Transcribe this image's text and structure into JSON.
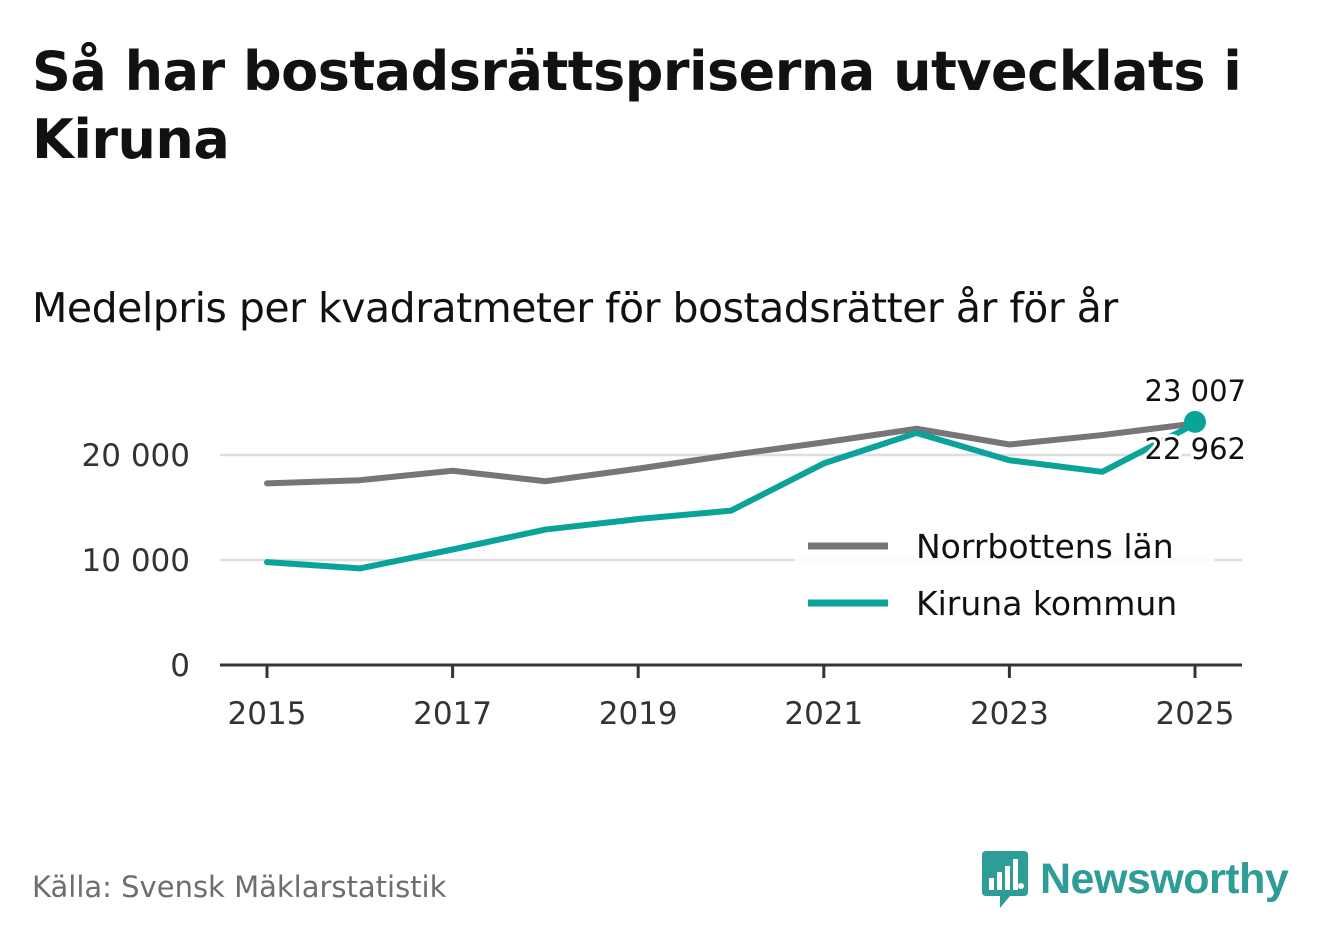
{
  "title": "Så har bostadsrättspriserna utvecklats i Kiruna",
  "subtitle": "Medelpris per kvadratmeter för bostadsrätter år för år",
  "source": "Källa: Svensk Mäklarstatistik",
  "brand": "Newsworthy",
  "colors": {
    "norrbotten": "#76767a",
    "kiruna": "#0aa39a",
    "brand": "#2e9c97",
    "grid": "#dedede",
    "axis": "#333333"
  },
  "chart_data": {
    "type": "line",
    "title": "Medelpris per kvadratmeter för bostadsrätter år för år",
    "xlabel": "",
    "ylabel": "",
    "x": [
      2015,
      2016,
      2017,
      2018,
      2019,
      2020,
      2021,
      2022,
      2023,
      2024,
      2025
    ],
    "xlim": [
      2014.5,
      2025.5
    ],
    "ylim": [
      0,
      23500
    ],
    "x_ticks": [
      2015,
      2017,
      2019,
      2021,
      2023,
      2025
    ],
    "x_tick_labels": [
      "2015",
      "2017",
      "2019",
      "2021",
      "2023",
      "2025"
    ],
    "y_ticks": [
      0,
      10000,
      20000
    ],
    "y_tick_labels": [
      "0",
      "10 000",
      "20 000"
    ],
    "grid": true,
    "legend_position": "bottom-right",
    "series": [
      {
        "name": "Norrbottens län",
        "key": "norrbotten",
        "values": [
          17300,
          17600,
          18500,
          17500,
          18700,
          20000,
          21200,
          22500,
          21000,
          21900,
          23007
        ],
        "end_label": "23 007"
      },
      {
        "name": "Kiruna kommun",
        "key": "kiruna",
        "values": [
          9800,
          9200,
          11000,
          12900,
          13900,
          14700,
          19200,
          22100,
          19500,
          18400,
          22962
        ],
        "end_label": "22 962"
      }
    ]
  }
}
